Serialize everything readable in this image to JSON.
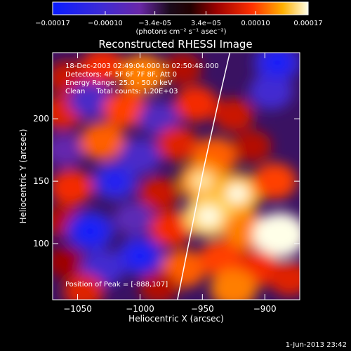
{
  "chart_data": {
    "type": "heatmap",
    "title": "Reconstructed RHESSI Image",
    "xlabel": "Heliocentric X (arcsec)",
    "ylabel": "Heliocentric Y (arcsec)",
    "xlim": [
      -1070,
      -872
    ],
    "ylim": [
      55,
      253
    ],
    "xticks": [
      -1050,
      -1000,
      -950,
      -900
    ],
    "yticks": [
      100,
      150,
      200
    ],
    "annotations": [
      "18-Dec-2003 02:49:04.000 to 02:50:48.000",
      "Detectors: 4F 5F 6F 7F 8F, Att 0",
      "Energy Range: 25.0 - 50.0 keV",
      "Clean     Total counts: 1.20E+03"
    ],
    "peak_label": "Position of Peak = [-888,107]",
    "peak_position": [
      -888,
      107
    ],
    "colorbar": {
      "range": [
        -0.00017,
        0.00017
      ],
      "tick_labels": [
        "-0.00017",
        "-0.00010",
        "-3.4e-05",
        "3.4e-05",
        "0.00010",
        "0.00017"
      ],
      "tick_values": [
        -0.00017,
        -0.0001,
        -3.4e-05,
        3.4e-05,
        0.0001,
        0.00017
      ],
      "unit_label": "(photons cm⁻² s⁻¹ asec⁻²)"
    },
    "limb_curve": [
      [
        -970,
        55
      ],
      [
        -960,
        105
      ],
      [
        -949,
        160
      ],
      [
        -938,
        210
      ],
      [
        -928,
        253
      ]
    ],
    "intensity_field": [
      {
        "x": -1058,
        "y": 233,
        "v": 7e-05
      },
      {
        "x": -1030,
        "y": 242,
        "v": 9e-05
      },
      {
        "x": -998,
        "y": 236,
        "v": 0.00012
      },
      {
        "x": -966,
        "y": 240,
        "v": 6e-05
      },
      {
        "x": -1062,
        "y": 205,
        "v": 8e-05
      },
      {
        "x": -1040,
        "y": 215,
        "v": -9e-05
      },
      {
        "x": -1012,
        "y": 208,
        "v": 0.0001
      },
      {
        "x": -985,
        "y": 200,
        "v": -8e-05
      },
      {
        "x": -955,
        "y": 212,
        "v": 9e-05
      },
      {
        "x": -925,
        "y": 203,
        "v": 7e-05
      },
      {
        "x": -895,
        "y": 222,
        "v": -0.0001
      },
      {
        "x": -890,
        "y": 245,
        "v": -0.00012
      },
      {
        "x": -1060,
        "y": 175,
        "v": -6e-05
      },
      {
        "x": -1030,
        "y": 182,
        "v": 0.00011
      },
      {
        "x": -1000,
        "y": 170,
        "v": -9e-05
      },
      {
        "x": -970,
        "y": 180,
        "v": 8e-05
      },
      {
        "x": -940,
        "y": 170,
        "v": 0.00011
      },
      {
        "x": -910,
        "y": 178,
        "v": 6e-05
      },
      {
        "x": -1055,
        "y": 145,
        "v": 9e-05
      },
      {
        "x": -1020,
        "y": 150,
        "v": -0.00011
      },
      {
        "x": -985,
        "y": 140,
        "v": 7e-05
      },
      {
        "x": -950,
        "y": 150,
        "v": 0.00013
      },
      {
        "x": -922,
        "y": 140,
        "v": 0.00014
      },
      {
        "x": -892,
        "y": 150,
        "v": 0.0001
      },
      {
        "x": -1062,
        "y": 118,
        "v": 6e-05
      },
      {
        "x": -1040,
        "y": 110,
        "v": -0.00013
      },
      {
        "x": -1005,
        "y": 120,
        "v": -7e-05
      },
      {
        "x": -975,
        "y": 112,
        "v": 9e-05
      },
      {
        "x": -945,
        "y": 122,
        "v": 0.00015
      },
      {
        "x": -915,
        "y": 110,
        "v": 0.00012
      },
      {
        "x": -888,
        "y": 107,
        "v": 0.00017
      },
      {
        "x": -1060,
        "y": 85,
        "v": 5e-05
      },
      {
        "x": -1030,
        "y": 80,
        "v": -0.0001
      },
      {
        "x": -1000,
        "y": 90,
        "v": -0.00012
      },
      {
        "x": -965,
        "y": 80,
        "v": 0.00011
      },
      {
        "x": -935,
        "y": 88,
        "v": 0.0001
      },
      {
        "x": -905,
        "y": 80,
        "v": 9e-05
      },
      {
        "x": -1045,
        "y": 62,
        "v": 8e-05
      },
      {
        "x": -985,
        "y": 65,
        "v": 6e-05
      },
      {
        "x": -925,
        "y": 64,
        "v": 0.00012
      },
      {
        "x": -880,
        "y": 72,
        "v": 8e-05
      }
    ]
  },
  "footer": {
    "date_stamp": "1-Jun-2013 23:42"
  },
  "colors": {
    "background": "#000000",
    "text": "#ffffff",
    "limb": "#ffffff"
  }
}
